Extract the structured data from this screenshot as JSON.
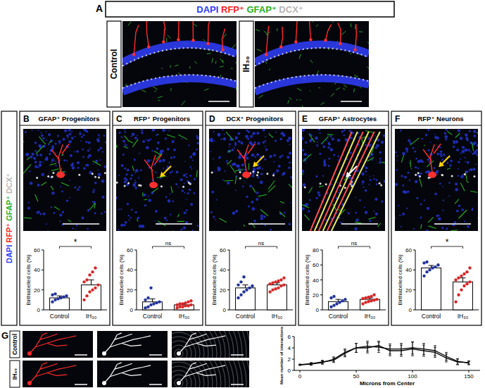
{
  "figure": {
    "stains": [
      {
        "text": "DAPI",
        "color": "#2a3cff"
      },
      {
        "text": "RFP⁺",
        "color": "#ff2020"
      },
      {
        "text": "GFAP⁺",
        "color": "#1fb01f"
      },
      {
        "text": "DCX⁺",
        "color": "#b5b5b5"
      }
    ],
    "panel_a": {
      "label": "A",
      "groups": [
        "Control",
        "IH₃₀"
      ]
    },
    "panels": [
      {
        "label": "B",
        "title": "GFAP⁺ Progenitors"
      },
      {
        "label": "C",
        "title": "RFP⁺ Progenitors"
      },
      {
        "label": "D",
        "title": "DCX⁺ Progenitors"
      },
      {
        "label": "E",
        "title": "GFAP⁺ Astrocytes"
      },
      {
        "label": "F",
        "title": "RFP⁺ Neurons"
      }
    ],
    "panel_g": {
      "label": "G",
      "groups": [
        "Control",
        "IH₃₀"
      ]
    }
  },
  "chart_data": [
    {
      "type": "bar",
      "ylabel": "Birthlabelled cells (%)",
      "categories": [
        "Control",
        "IH₃₀"
      ],
      "values": [
        12,
        25
      ],
      "errors": [
        2,
        5
      ],
      "points": [
        [
          8,
          10,
          11,
          12,
          13,
          14,
          15,
          16
        ],
        [
          10,
          14,
          18,
          20,
          22,
          25,
          28,
          30,
          35,
          38,
          42
        ]
      ],
      "color": "#ffffff",
      "colors": [
        "#22339a",
        "#d62728"
      ],
      "ylim": [
        0,
        60
      ],
      "yticks": [
        0,
        20,
        40,
        60
      ],
      "annotations": [
        "*"
      ]
    },
    {
      "type": "bar",
      "ylabel": "Birthlabelled cells (%)",
      "categories": [
        "Control",
        "IH₃₀"
      ],
      "values": [
        8,
        5
      ],
      "errors": [
        3,
        1.5
      ],
      "points": [
        [
          2,
          3,
          5,
          6,
          7,
          8,
          10,
          12,
          22
        ],
        [
          2,
          3,
          3,
          4,
          4,
          5,
          5,
          6,
          6,
          7,
          8,
          9
        ]
      ],
      "color": "#ffffff",
      "colors": [
        "#22339a",
        "#d62728"
      ],
      "ylim": [
        0,
        60
      ],
      "yticks": [
        0,
        20,
        40,
        60
      ],
      "annotations": [
        "ns"
      ]
    },
    {
      "type": "bar",
      "ylabel": "Birthlabelled cells (%)",
      "categories": [
        "Control",
        "IH₃₀"
      ],
      "values": [
        22,
        25
      ],
      "errors": [
        3,
        2
      ],
      "points": [
        [
          12,
          15,
          18,
          20,
          22,
          24,
          25,
          28,
          33
        ],
        [
          18,
          20,
          21,
          22,
          24,
          25,
          26,
          27,
          28,
          29,
          30,
          32
        ]
      ],
      "color": "#ffffff",
      "colors": [
        "#22339a",
        "#d62728"
      ],
      "ylim": [
        0,
        60
      ],
      "yticks": [
        0,
        20,
        40,
        60
      ],
      "annotations": [
        "ns"
      ]
    },
    {
      "type": "bar",
      "ylabel": "Birthlabelled cells (%)",
      "categories": [
        "Control",
        "IH₃₀"
      ],
      "values": [
        11,
        14
      ],
      "errors": [
        3,
        2
      ],
      "points": [
        [
          4,
          6,
          8,
          10,
          12,
          14,
          16,
          18
        ],
        [
          8,
          10,
          11,
          12,
          13,
          14,
          15,
          16,
          17,
          18,
          20
        ]
      ],
      "color": "#ffffff",
      "colors": [
        "#22339a",
        "#d62728"
      ],
      "ylim": [
        0,
        80
      ],
      "yticks": [
        0,
        20,
        40,
        60,
        80
      ],
      "annotations": [
        "ns"
      ]
    },
    {
      "type": "bar",
      "ylabel": "Birthlabelled cells (%)",
      "categories": [
        "Control",
        "IH₃₀"
      ],
      "values": [
        42,
        28
      ],
      "errors": [
        2.5,
        4
      ],
      "points": [
        [
          34,
          38,
          40,
          42,
          43,
          45,
          47,
          48
        ],
        [
          8,
          15,
          20,
          24,
          26,
          28,
          30,
          32,
          34,
          36,
          38,
          42
        ]
      ],
      "color": "#ffffff",
      "colors": [
        "#22339a",
        "#d62728"
      ],
      "ylim": [
        0,
        60
      ],
      "yticks": [
        0,
        20,
        40,
        60
      ],
      "annotations": [
        "*"
      ]
    },
    {
      "type": "line",
      "xlabel": "Microns from Center",
      "ylabel": "Mean number of interactions",
      "x": [
        0,
        10,
        20,
        30,
        40,
        50,
        60,
        70,
        80,
        90,
        100,
        110,
        120,
        130,
        140,
        150
      ],
      "series": [
        {
          "color": "#000000",
          "values": [
            1,
            1.1,
            1.4,
            2,
            3.2,
            4,
            4.3,
            4.1,
            3.8,
            3.8,
            4,
            3.8,
            3.5,
            2.5,
            1.6,
            1.3
          ],
          "errors": [
            0.1,
            0.2,
            0.3,
            0.4,
            0.6,
            0.8,
            0.9,
            0.9,
            0.9,
            1,
            1.1,
            1,
            0.9,
            0.7,
            0.5,
            0.3
          ]
        },
        {
          "color": "#000000",
          "values": [
            1,
            1.2,
            1.5,
            1.8,
            3,
            4,
            4,
            4.4,
            3.5,
            3.5,
            3.8,
            3.5,
            3.2,
            2.2,
            1.5,
            1.4
          ],
          "errors": [
            0.1,
            0.2,
            0.3,
            0.4,
            0.6,
            0.8,
            0.9,
            0.8,
            0.9,
            1,
            1.2,
            1,
            0.9,
            0.7,
            0.5,
            0.3
          ]
        }
      ],
      "xlim": [
        -5,
        160
      ],
      "xticks": [
        0,
        50,
        100,
        150
      ],
      "ylim": [
        0,
        6
      ],
      "yticks": [
        0,
        2,
        4,
        6
      ]
    }
  ]
}
